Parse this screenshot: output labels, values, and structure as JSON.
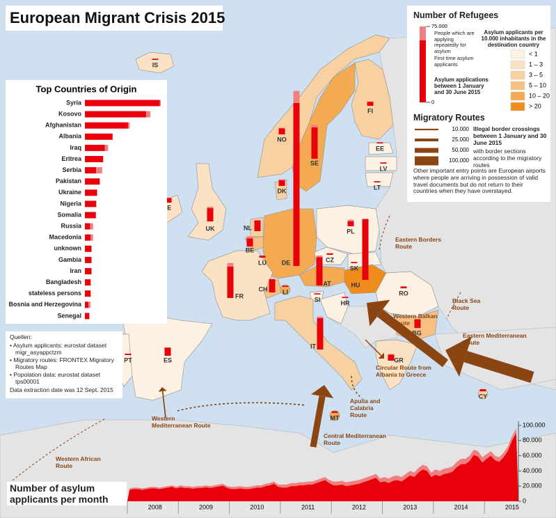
{
  "title": "European Migrant Crisis 2015",
  "origins": {
    "title": "Top Countries of Origin",
    "items": [
      {
        "name": "Syria",
        "first": 87000,
        "repeat": 1000
      },
      {
        "name": "Kosovo",
        "first": 71000,
        "repeat": 5000
      },
      {
        "name": "Afghanistan",
        "first": 50000,
        "repeat": 2000
      },
      {
        "name": "Albania",
        "first": 32000,
        "repeat": 500
      },
      {
        "name": "Iraq",
        "first": 23000,
        "repeat": 4000
      },
      {
        "name": "Eritrea",
        "first": 21000,
        "repeat": 500
      },
      {
        "name": "Serbia",
        "first": 13000,
        "repeat": 7000
      },
      {
        "name": "Pakistan",
        "first": 17000,
        "repeat": 500
      },
      {
        "name": "Ukraine",
        "first": 14000,
        "repeat": 500
      },
      {
        "name": "Nigeria",
        "first": 13000,
        "repeat": 500
      },
      {
        "name": "Somalia",
        "first": 12500,
        "repeat": 500
      },
      {
        "name": "Russia",
        "first": 6000,
        "repeat": 3500
      },
      {
        "name": "Macedonia",
        "first": 6500,
        "repeat": 3000
      },
      {
        "name": "unknown",
        "first": 7500,
        "repeat": 500
      },
      {
        "name": "Gambia",
        "first": 7500,
        "repeat": 500
      },
      {
        "name": "Iran",
        "first": 7500,
        "repeat": 500
      },
      {
        "name": "Bangladesh",
        "first": 6500,
        "repeat": 500
      },
      {
        "name": "stateless persons",
        "first": 6500,
        "repeat": 500
      },
      {
        "name": "Bosnia and Herzegovina",
        "first": 4000,
        "repeat": 2500
      },
      {
        "name": "Senegal",
        "first": 5000,
        "repeat": 500
      }
    ],
    "first_color": "#e8000b",
    "repeat_color": "#f08080"
  },
  "legend": {
    "refugees_title": "Number of Refugees",
    "refugee_ticks": [
      {
        "value": 75000,
        "label": "75.000"
      },
      0
    ],
    "repeat_note": "People which are applying repeatedly for asylum",
    "first_note": "First time asylum applicants",
    "period_note": "Asylum applications between 1 January and 30 June 2015",
    "density_title": "Asylum applicants per 10.000 inhabitants in the destination country",
    "density_classes": [
      {
        "label": "< 1",
        "color": "#fdf1e3"
      },
      {
        "label": "1 – 3",
        "color": "#fbe2c4"
      },
      {
        "label": "3 – 5",
        "color": "#f8d1a3"
      },
      {
        "label": "5 – 10",
        "color": "#f6c083"
      },
      {
        "label": "10 – 20",
        "color": "#f3aa52"
      },
      {
        "label": "> 20",
        "color": "#ef8c1c"
      }
    ],
    "routes_title": "Migratory Routes",
    "route_widths": [
      {
        "value": 10000,
        "label": "10.000"
      },
      {
        "value": 25000,
        "label": "25.000"
      },
      {
        "value": 50000,
        "label": "50.000"
      },
      {
        "value": 100000,
        "label": "100.000"
      }
    ],
    "routes_note": "Illegal border crossings between 1 January and 30 June 2015",
    "routes_subnote": "with border sections according to the migratory routes",
    "airport_note": "Other important entry points are European airports where people are arriving in possession of valid travel documents but do not return to their countries when they have overstayed.",
    "route_color": "#8b4513"
  },
  "countries": [
    {
      "code": "IS",
      "color": "#fbe2c4",
      "first": 150,
      "repeat": 0
    },
    {
      "code": "NO",
      "color": "#f8d1a3",
      "first": 5000,
      "repeat": 500
    },
    {
      "code": "SE",
      "color": "#f3aa52",
      "first": 30000,
      "repeat": 2500
    },
    {
      "code": "FI",
      "color": "#f8d1a3",
      "first": 3000,
      "repeat": 300
    },
    {
      "code": "EE",
      "color": "#fdf1e3",
      "first": 100,
      "repeat": 0
    },
    {
      "code": "LV",
      "color": "#fdf1e3",
      "first": 150,
      "repeat": 0
    },
    {
      "code": "LT",
      "color": "#fdf1e3",
      "first": 150,
      "repeat": 0
    },
    {
      "code": "DK",
      "color": "#f8d1a3",
      "first": 4500,
      "repeat": 1000
    },
    {
      "code": "IE",
      "color": "#fbe2c4",
      "first": 3500,
      "repeat": 500
    },
    {
      "code": "UK",
      "color": "#fbe2c4",
      "first": 12000,
      "repeat": 1500
    },
    {
      "code": "NL",
      "color": "#f8d1a3",
      "first": 9500,
      "repeat": 500
    },
    {
      "code": "BE",
      "color": "#f6c083",
      "first": 7000,
      "repeat": 2000
    },
    {
      "code": "LU",
      "color": "#f6c083",
      "first": 800,
      "repeat": 100
    },
    {
      "code": "DE",
      "color": "#f3aa52",
      "first": 160000,
      "repeat": 12000
    },
    {
      "code": "PL",
      "color": "#fdf1e3",
      "first": 4000,
      "repeat": 1500
    },
    {
      "code": "CZ",
      "color": "#fdf1e3",
      "first": 500,
      "repeat": 100
    },
    {
      "code": "SK",
      "color": "#fdf1e3",
      "first": 150,
      "repeat": 0
    },
    {
      "code": "AT",
      "color": "#f3aa52",
      "first": 27000,
      "repeat": 1500
    },
    {
      "code": "HU",
      "color": "#ef8c1c",
      "first": 59000,
      "repeat": 500
    },
    {
      "code": "CH",
      "color": "#f6c083",
      "first": 12000,
      "repeat": 500
    },
    {
      "code": "LI",
      "color": "#f3aa52",
      "first": 70,
      "repeat": 0
    },
    {
      "code": "FR",
      "color": "#fbe2c4",
      "first": 30000,
      "repeat": 3500
    },
    {
      "code": "SI",
      "color": "#fdf1e3",
      "first": 100,
      "repeat": 0
    },
    {
      "code": "HR",
      "color": "#fdf1e3",
      "first": 100,
      "repeat": 0
    },
    {
      "code": "RO",
      "color": "#fdf1e3",
      "first": 700,
      "repeat": 100
    },
    {
      "code": "BG",
      "color": "#f6c083",
      "first": 7500,
      "repeat": 300
    },
    {
      "code": "IT",
      "color": "#f8d1a3",
      "first": 30000,
      "repeat": 1500
    },
    {
      "code": "ES",
      "color": "#fdf1e3",
      "first": 7000,
      "repeat": 300
    },
    {
      "code": "PT",
      "color": "#fdf1e3",
      "first": 400,
      "repeat": 50
    },
    {
      "code": "GR",
      "color": "#fbe2c4",
      "first": 5000,
      "repeat": 500
    },
    {
      "code": "MT",
      "color": "#f3aa52",
      "first": 600,
      "repeat": 50
    },
    {
      "code": "CY",
      "color": "#f8d1a3",
      "first": 1000,
      "repeat": 100
    }
  ],
  "routes": [
    {
      "name": "Eastern Borders Route",
      "value": 426
    },
    {
      "name": "Black Sea Route",
      "value": 68
    },
    {
      "name": "Eastern Mediterranean Route",
      "value": 132240
    },
    {
      "name": "Western Balkan Route",
      "value": 102342
    },
    {
      "name": "Circular Route from Albania to Greece",
      "value": 4000
    },
    {
      "name": "Apulia and Calabria Route",
      "value": 4750
    },
    {
      "name": "Central Mediterranean Route",
      "value": 67614
    },
    {
      "name": "Western Mediterranean Route",
      "value": 5900
    },
    {
      "name": "Western African Route",
      "value": 260
    }
  ],
  "sources": {
    "title": "Quellen:",
    "items": [
      "Asylum applicants: eurostat dataset migr_asyappctzm",
      "Migratory routes: FRONTEX Migratory Routes Map",
      "Popolation data: eurostat dataset tps00001"
    ],
    "date": "Data extraction date was 12 Sept. 2015"
  },
  "monthly": {
    "type": "area",
    "title": "Number of asylum applicants per month",
    "categories": [
      null,
      null,
      null,
      null,
      null,
      null,
      "2008",
      null,
      null,
      null,
      null,
      null,
      null,
      null,
      null,
      null,
      null,
      null,
      "2009",
      null,
      null,
      null,
      null,
      null,
      null,
      null,
      null,
      null,
      null,
      null,
      "2010",
      null,
      null,
      null,
      null,
      null,
      null,
      null,
      null,
      null,
      null,
      null,
      "2011",
      null,
      null,
      null,
      null,
      null,
      null,
      null,
      null,
      null,
      null,
      null,
      "2012",
      null,
      null,
      null,
      null,
      null,
      null,
      null,
      null,
      null,
      null,
      null,
      "2013",
      null,
      null,
      null,
      null,
      null,
      null,
      null,
      null,
      null,
      null,
      null,
      "2014",
      null,
      null,
      null,
      null,
      null,
      null,
      null,
      null,
      null,
      null,
      null,
      "2015",
      null
    ],
    "series": [
      {
        "color": "#e8000b",
        "values": [
          15000,
          16000,
          16000,
          15000,
          16000,
          17000,
          17000,
          16000,
          17000,
          18000,
          19000,
          17000,
          18500,
          17500,
          17500,
          16500,
          17500,
          17500,
          18500,
          17500,
          18500,
          19500,
          20500,
          17500,
          16000,
          16000,
          17000,
          16000,
          16000,
          17000,
          18000,
          18000,
          20000,
          21000,
          23000,
          19000,
          18000,
          18000,
          20000,
          20000,
          21000,
          21000,
          22000,
          22000,
          24000,
          26000,
          28000,
          24000,
          21000,
          21000,
          22000,
          20000,
          21000,
          22000,
          23000,
          25000,
          27000,
          29000,
          31000,
          25000,
          26000,
          24000,
          27000,
          28000,
          26000,
          30000,
          34000,
          32000,
          38000,
          42000,
          40000,
          32000,
          35000,
          33000,
          36000,
          37000,
          39000,
          45000,
          49000,
          49000,
          53000,
          61000,
          59000,
          51000,
          56000,
          60000,
          54000,
          52000,
          58000,
          66000,
          80000,
          90000
        ]
      },
      {
        "color": "#f08080",
        "values": [
          2000,
          2000,
          2000,
          2000,
          2000,
          2000,
          2000,
          2000,
          2000,
          2000,
          2000,
          2000,
          2500,
          2500,
          2500,
          2500,
          2500,
          2500,
          2500,
          2500,
          2500,
          2500,
          2500,
          2500,
          3000,
          3000,
          3000,
          3000,
          3000,
          3000,
          3000,
          3000,
          3000,
          3000,
          3000,
          3000,
          4000,
          4000,
          4000,
          4000,
          4000,
          4000,
          4000,
          4000,
          4000,
          4000,
          4000,
          4000,
          5000,
          5000,
          5000,
          5000,
          5000,
          5000,
          5000,
          5000,
          5000,
          5000,
          5000,
          5000,
          6000,
          6000,
          6000,
          6000,
          6000,
          6000,
          6000,
          6000,
          6000,
          6000,
          6000,
          6000,
          7000,
          7000,
          7000,
          7000,
          7000,
          7000,
          7000,
          7000,
          7000,
          7000,
          7000,
          7000,
          6000,
          6000,
          6000,
          6000,
          6000,
          6000,
          6000,
          6000
        ]
      }
    ],
    "ylim": [
      0,
      100000
    ],
    "yticks": [
      0,
      {
        "value": 20000,
        "label": "20.000"
      },
      {
        "value": 40000,
        "label": "40.000"
      },
      {
        "value": 60000,
        "label": "60.000"
      },
      {
        "value": 80000,
        "label": "80.000"
      },
      {
        "value": 100000,
        "label": "100.000"
      }
    ]
  }
}
